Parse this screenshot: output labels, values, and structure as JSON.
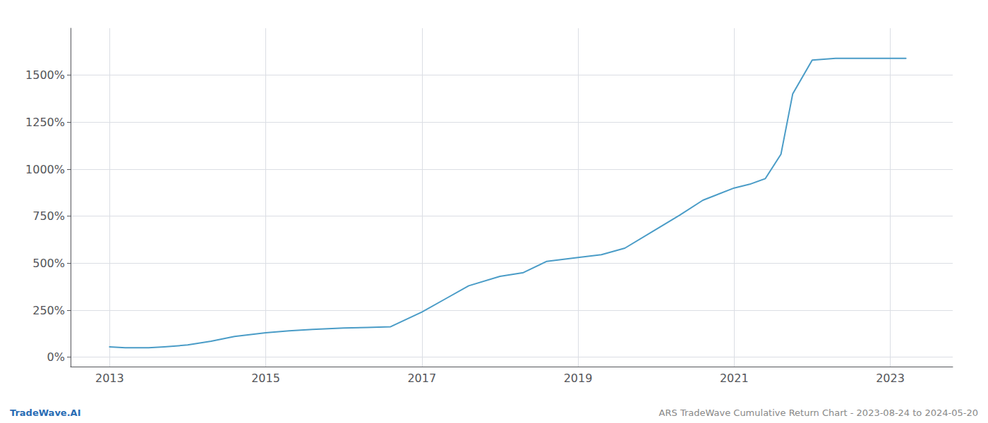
{
  "chart_data": {
    "type": "line",
    "x": [
      2013.0,
      2013.2,
      2013.5,
      2013.7,
      2014.0,
      2014.3,
      2014.6,
      2015.0,
      2015.3,
      2015.6,
      2016.0,
      2016.3,
      2016.6,
      2017.0,
      2017.3,
      2017.6,
      2018.0,
      2018.3,
      2018.6,
      2019.0,
      2019.3,
      2019.6,
      2020.0,
      2020.3,
      2020.6,
      2021.0,
      2021.2,
      2021.4,
      2021.6,
      2021.75,
      2022.0,
      2022.3,
      2022.6,
      2022.9,
      2023.0,
      2023.2
    ],
    "values": [
      55,
      50,
      50,
      55,
      65,
      85,
      110,
      130,
      140,
      148,
      155,
      158,
      162,
      240,
      310,
      380,
      430,
      450,
      510,
      530,
      545,
      580,
      680,
      755,
      835,
      900,
      920,
      950,
      1080,
      1400,
      1580,
      1590,
      1590,
      1590,
      1590,
      1590
    ],
    "color": "#4a9cc7",
    "xlim": [
      2012.5,
      2023.8
    ],
    "xticks": [
      2013,
      2015,
      2017,
      2019,
      2021,
      2023
    ],
    "ylim": [
      -50,
      1750
    ],
    "yticks": [
      {
        "value": 0,
        "label": "0%"
      },
      {
        "value": 250,
        "label": "250%"
      },
      {
        "value": 500,
        "label": "500%"
      },
      {
        "value": 750,
        "label": "750%"
      },
      {
        "value": 1000,
        "label": "1000%"
      },
      {
        "value": 1250,
        "label": "1250%"
      },
      {
        "value": 1500,
        "label": "1500%"
      }
    ],
    "grid": true,
    "annotations": [
      "TradeWave.AI",
      "ARS TradeWave Cumulative Return Chart - 2023-08-24 to 2024-05-20"
    ]
  }
}
